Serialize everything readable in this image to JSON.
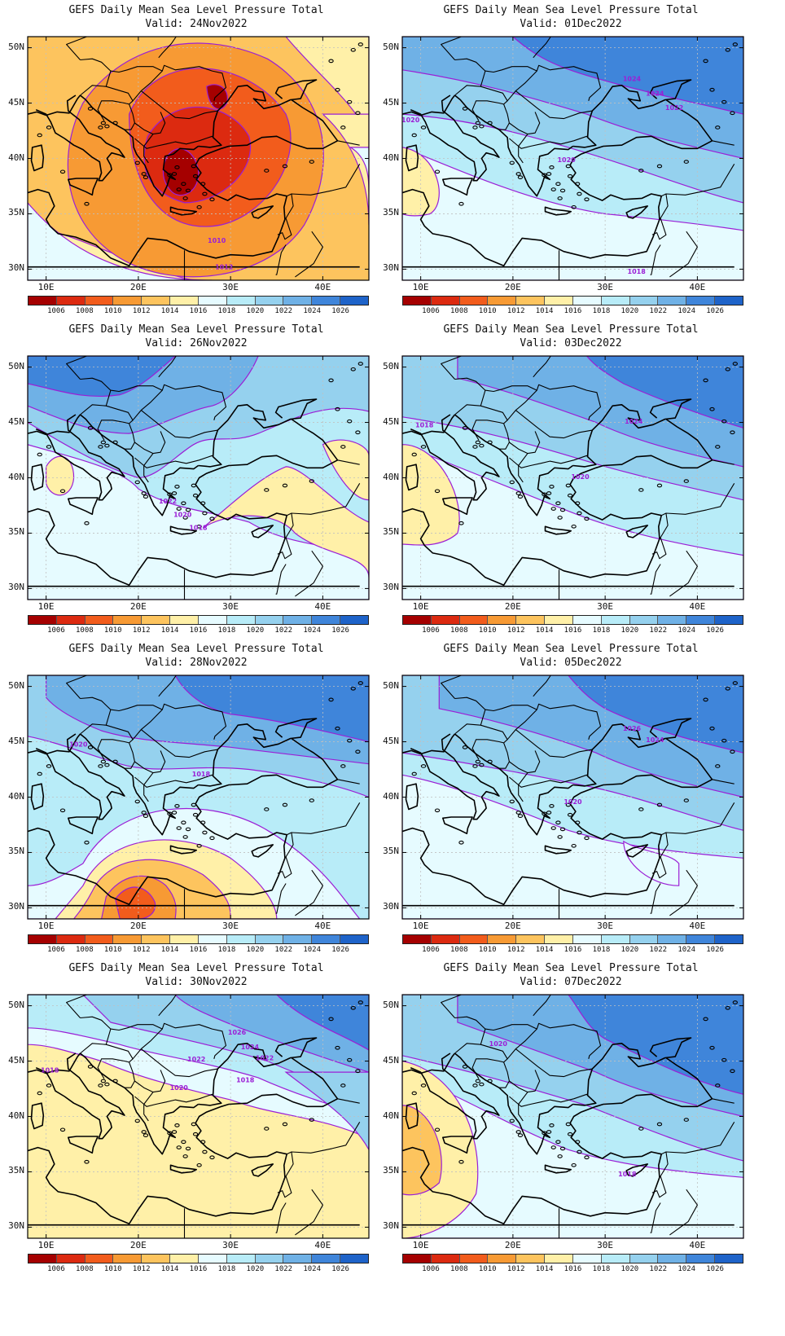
{
  "figure_title": "GEFS Daily Mean Sea Level Pressure Total",
  "valid_prefix": "Valid:",
  "lon_labels": [
    "10E",
    "20E",
    "30E",
    "40E"
  ],
  "lat_labels": [
    "50N",
    "45N",
    "40N",
    "35N",
    "30N"
  ],
  "colorbar": {
    "levels": [
      "1006",
      "1008",
      "1010",
      "1012",
      "1014",
      "1016",
      "1018",
      "1020",
      "1022",
      "1024",
      "1026"
    ],
    "colors": [
      "#a50000",
      "#dc2a10",
      "#f25c1c",
      "#f79a34",
      "#fdc45e",
      "#fff0a8",
      "#e6fbff",
      "#b8ecf8",
      "#95d1ee",
      "#6fb1e6",
      "#3f85da",
      "#1e63c9"
    ]
  },
  "contour_color": "#9b1fd6",
  "map_colors": {
    "coast": "#000000",
    "grid": "#c0c0c0"
  },
  "panels": [
    {
      "date": "24Nov2022",
      "background": "#fdc45e",
      "regions": [
        {
          "level": "1016",
          "color": "#fff0a8"
        },
        {
          "level": "1018",
          "color": "#e6fbff"
        },
        {
          "level": "1012",
          "color": "#f79a34"
        },
        {
          "level": "1010",
          "color": "#f25c1c"
        },
        {
          "level": "1008",
          "color": "#dc2a10"
        },
        {
          "level": "1006",
          "color": "#a50000"
        }
      ],
      "contour_labels": [
        "1010",
        "1012"
      ]
    },
    {
      "date": "26Nov2022",
      "background": "#b8ecf8",
      "regions": [
        {
          "level": "1018",
          "color": "#e6fbff"
        },
        {
          "level": "1016",
          "color": "#fff0a8"
        },
        {
          "level": "1022",
          "color": "#95d1ee"
        },
        {
          "level": "1024",
          "color": "#6fb1e6"
        },
        {
          "level": "1026",
          "color": "#3f85da"
        }
      ],
      "contour_labels": [
        "1022",
        "1020",
        "1018"
      ]
    },
    {
      "date": "28Nov2022",
      "background": "#b8ecf8",
      "regions": [
        {
          "level": "1018",
          "color": "#e6fbff"
        },
        {
          "level": "1016",
          "color": "#fff0a8"
        },
        {
          "level": "1014",
          "color": "#fdc45e"
        },
        {
          "level": "1012",
          "color": "#f79a34"
        },
        {
          "level": "1010",
          "color": "#f25c1c"
        },
        {
          "level": "1022",
          "color": "#95d1ee"
        },
        {
          "level": "1024",
          "color": "#6fb1e6"
        },
        {
          "level": "1026",
          "color": "#3f85da"
        }
      ],
      "contour_labels": [
        "1020",
        "1018"
      ]
    },
    {
      "date": "30Nov2022",
      "background": "#fff0a8",
      "regions": [
        {
          "level": "1018",
          "color": "#e6fbff"
        },
        {
          "level": "1020",
          "color": "#b8ecf8"
        },
        {
          "level": "1022",
          "color": "#95d1ee"
        },
        {
          "level": "1024",
          "color": "#6fb1e6"
        },
        {
          "level": "1026",
          "color": "#3f85da"
        }
      ],
      "contour_labels": [
        "1026",
        "1024",
        "1022",
        "1022",
        "1020",
        "1018",
        "1018"
      ]
    },
    {
      "date": "01Dec2022",
      "background": "#b8ecf8",
      "regions": [
        {
          "level": "1018",
          "color": "#e6fbff"
        },
        {
          "level": "1016",
          "color": "#fff0a8"
        },
        {
          "level": "1022",
          "color": "#95d1ee"
        },
        {
          "level": "1024",
          "color": "#6fb1e6"
        },
        {
          "level": "1026",
          "color": "#3f85da"
        }
      ],
      "contour_labels": [
        "1020",
        "1024",
        "1024",
        "1022",
        "1020",
        "1018"
      ]
    },
    {
      "date": "03Dec2022",
      "background": "#b8ecf8",
      "regions": [
        {
          "level": "1018",
          "color": "#e6fbff"
        },
        {
          "level": "1016",
          "color": "#fff0a8"
        },
        {
          "level": "1022",
          "color": "#95d1ee"
        },
        {
          "level": "1024",
          "color": "#6fb1e6"
        },
        {
          "level": "1026",
          "color": "#3f85da"
        }
      ],
      "contour_labels": [
        "1018",
        "1024",
        "1020"
      ]
    },
    {
      "date": "05Dec2022",
      "background": "#b8ecf8",
      "regions": [
        {
          "level": "1018",
          "color": "#e6fbff"
        },
        {
          "level": "1022",
          "color": "#95d1ee"
        },
        {
          "level": "1024",
          "color": "#6fb1e6"
        },
        {
          "level": "1026",
          "color": "#3f85da"
        }
      ],
      "contour_labels": [
        "1026",
        "1024",
        "1020"
      ]
    },
    {
      "date": "07Dec2022",
      "background": "#b8ecf8",
      "regions": [
        {
          "level": "1018",
          "color": "#e6fbff"
        },
        {
          "level": "1016",
          "color": "#fff0a8"
        },
        {
          "level": "1014",
          "color": "#fdc45e"
        },
        {
          "level": "1022",
          "color": "#95d1ee"
        },
        {
          "level": "1024",
          "color": "#6fb1e6"
        },
        {
          "level": "1026",
          "color": "#3f85da"
        }
      ],
      "contour_labels": [
        "1020",
        "1018"
      ]
    }
  ]
}
